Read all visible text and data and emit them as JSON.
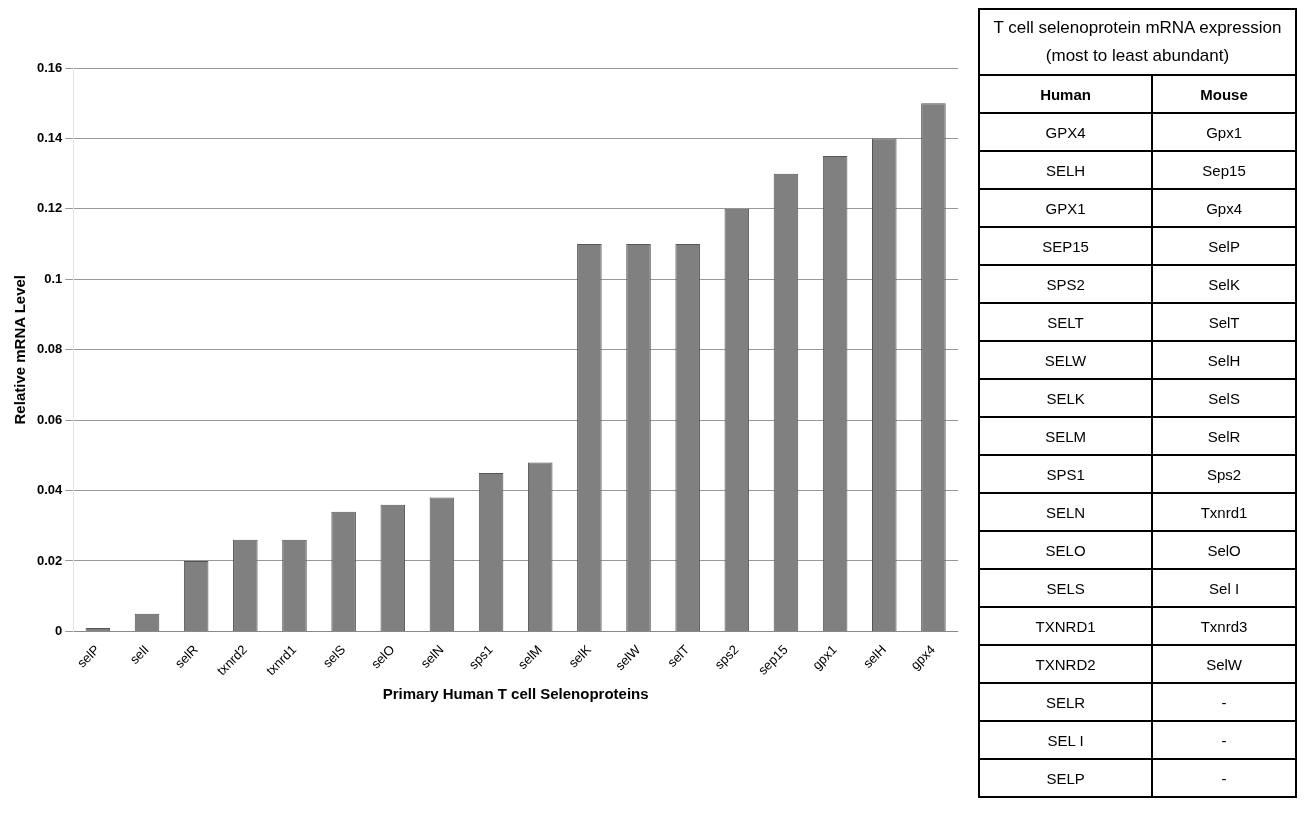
{
  "chart_data": [
    {
      "type": "bar",
      "xlabel": "Primary Human T cell Selenoproteins",
      "ylabel": "Relative mRNA Level",
      "categories": [
        "selP",
        "selI",
        "selR",
        "txnrd2",
        "txnrd1",
        "selS",
        "selO",
        "selN",
        "sps1",
        "selM",
        "selK",
        "selW",
        "selT",
        "sps2",
        "sep15",
        "gpx1",
        "selH",
        "gpx4"
      ],
      "values": [
        0.001,
        0.005,
        0.02,
        0.026,
        0.026,
        0.034,
        0.036,
        0.038,
        0.045,
        0.048,
        0.11,
        0.11,
        0.11,
        0.12,
        0.13,
        0.135,
        0.14,
        0.15
      ],
      "color": "#808080",
      "ylim": [
        0,
        0.16
      ],
      "yticks": [
        0,
        0.02,
        0.04,
        0.06,
        0.08,
        0.1,
        0.12,
        0.14,
        0.16
      ],
      "grid": "y",
      "legend": false
    },
    {
      "type": "other",
      "title": "T cell selenoprotein mRNA expression (most to least abundant)",
      "categories": [
        "Human",
        "Mouse"
      ],
      "annotations": [
        "GPX4",
        "Gpx1",
        "SELH",
        "Sep15",
        "GPX1",
        "Gpx4",
        "SEP15",
        "SelP",
        "SPS2",
        "SelK",
        "SELT",
        "SelT",
        "SELW",
        "SelH",
        "SELK",
        "SelS",
        "SELM",
        "SelR",
        "SPS1",
        "Sps2",
        "SELN",
        "Txnrd1",
        "SELO",
        "SelO",
        "SELS",
        "Sel I",
        "TXNRD1",
        "Txnrd3",
        "TXNRD2",
        "SelW",
        "SELR",
        "-",
        "SEL I",
        "-",
        "SELP",
        "-"
      ]
    }
  ]
}
